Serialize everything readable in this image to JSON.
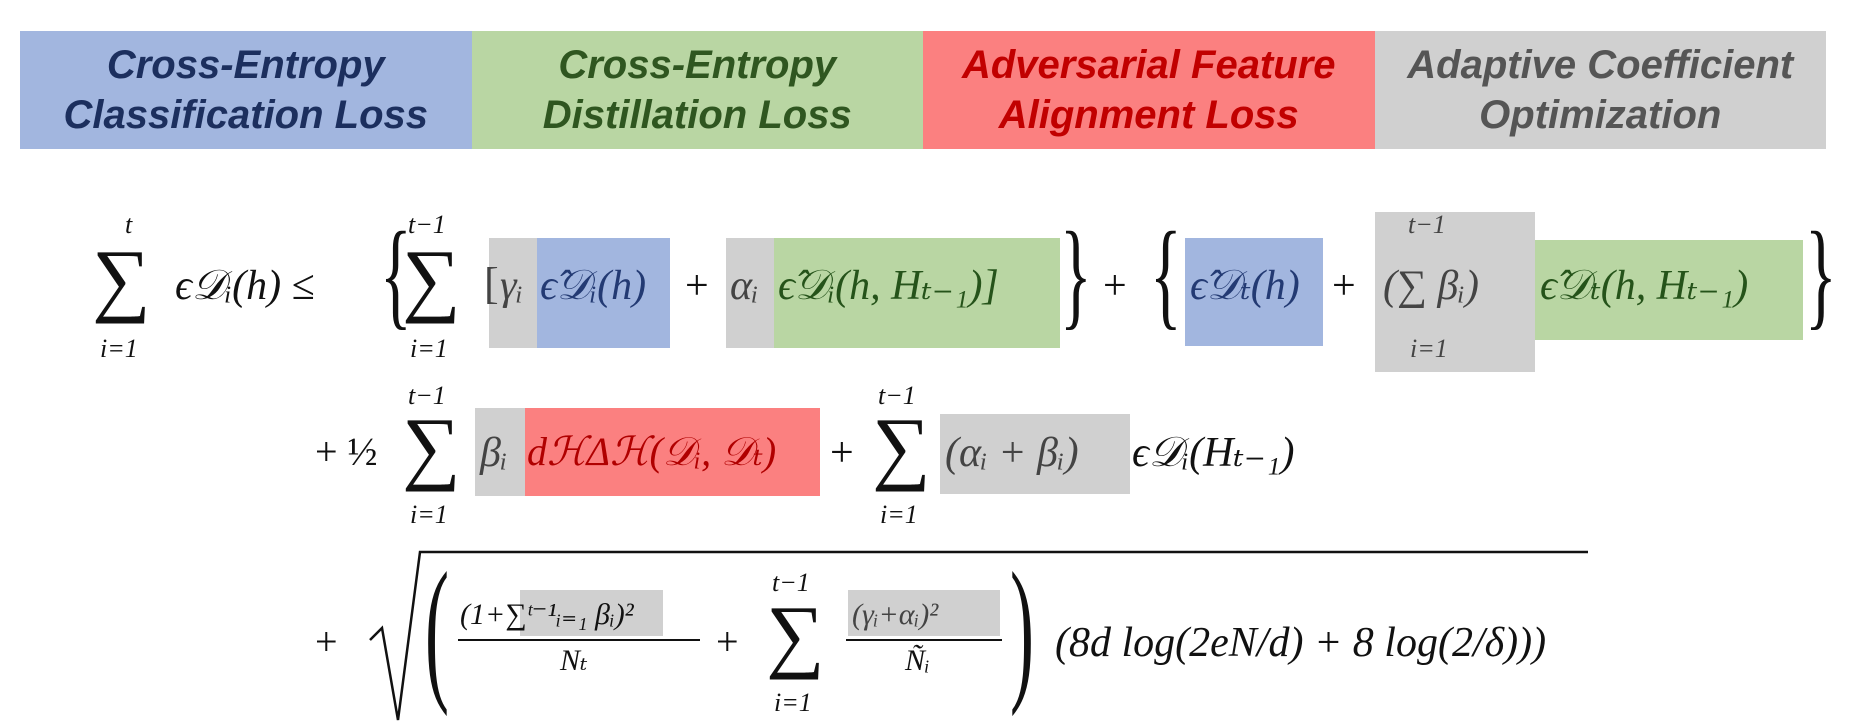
{
  "legend": [
    {
      "line1": "Cross-Entropy",
      "line2": "Classification Loss",
      "bg": "#a2b6df",
      "fg": "#1c2f5e"
    },
    {
      "line1": "Cross-Entropy",
      "line2": "Distillation Loss",
      "bg": "#b9d6a3",
      "fg": "#2f5620"
    },
    {
      "line1": "Adversarial Feature",
      "line2": "Alignment Loss",
      "bg": "#fb8080",
      "fg": "#c10000"
    },
    {
      "line1": "Adaptive Coefficient",
      "line2": "Optimization",
      "bg": "#d0d0d0",
      "fg": "#555555"
    }
  ],
  "colors": {
    "blue": "#a2b6df",
    "green": "#b9d6a3",
    "red": "#fb8080",
    "gray": "#d0d0d0"
  },
  "equation": {
    "lhs_sum_upper": "t",
    "lhs_sum_lower": "i=1",
    "lhs_term": "ϵ𝒟ᵢ(h) ≤",
    "sum_upper": "t−1",
    "sum_lower": "i=1",
    "gamma": "γᵢ",
    "cls_loss_i": "ϵ̂𝒟ᵢ(h)",
    "plus": "+",
    "alpha": "αᵢ",
    "dist_loss_i": "ϵ̂𝒟ᵢ(h, Hₜ₋₁)]",
    "open_bracket": "[",
    "cls_loss_t": "ϵ̂𝒟ₜ(h)",
    "beta_sum": "(∑ βᵢ)",
    "dist_loss_t": "ϵ̂𝒟ₜ(h, Hₜ₋₁)",
    "half": "+ ½",
    "beta": "βᵢ",
    "adv_loss": "dℋΔℋ(𝒟ᵢ, 𝒟ₜ)",
    "alpha_beta": "(αᵢ + βᵢ)",
    "teacher_term": "ϵ𝒟ᵢ(Hₜ₋₁)",
    "frac1_num": "(1+∑ᵗ⁻¹ᵢ₌₁ βᵢ)²",
    "frac1_den": "Nₜ",
    "frac2_num": "(γᵢ+αᵢ)²",
    "frac2_den": "Ñᵢ",
    "log_term": "(8d log(2eN/d) + 8 log(2/δ)))"
  }
}
